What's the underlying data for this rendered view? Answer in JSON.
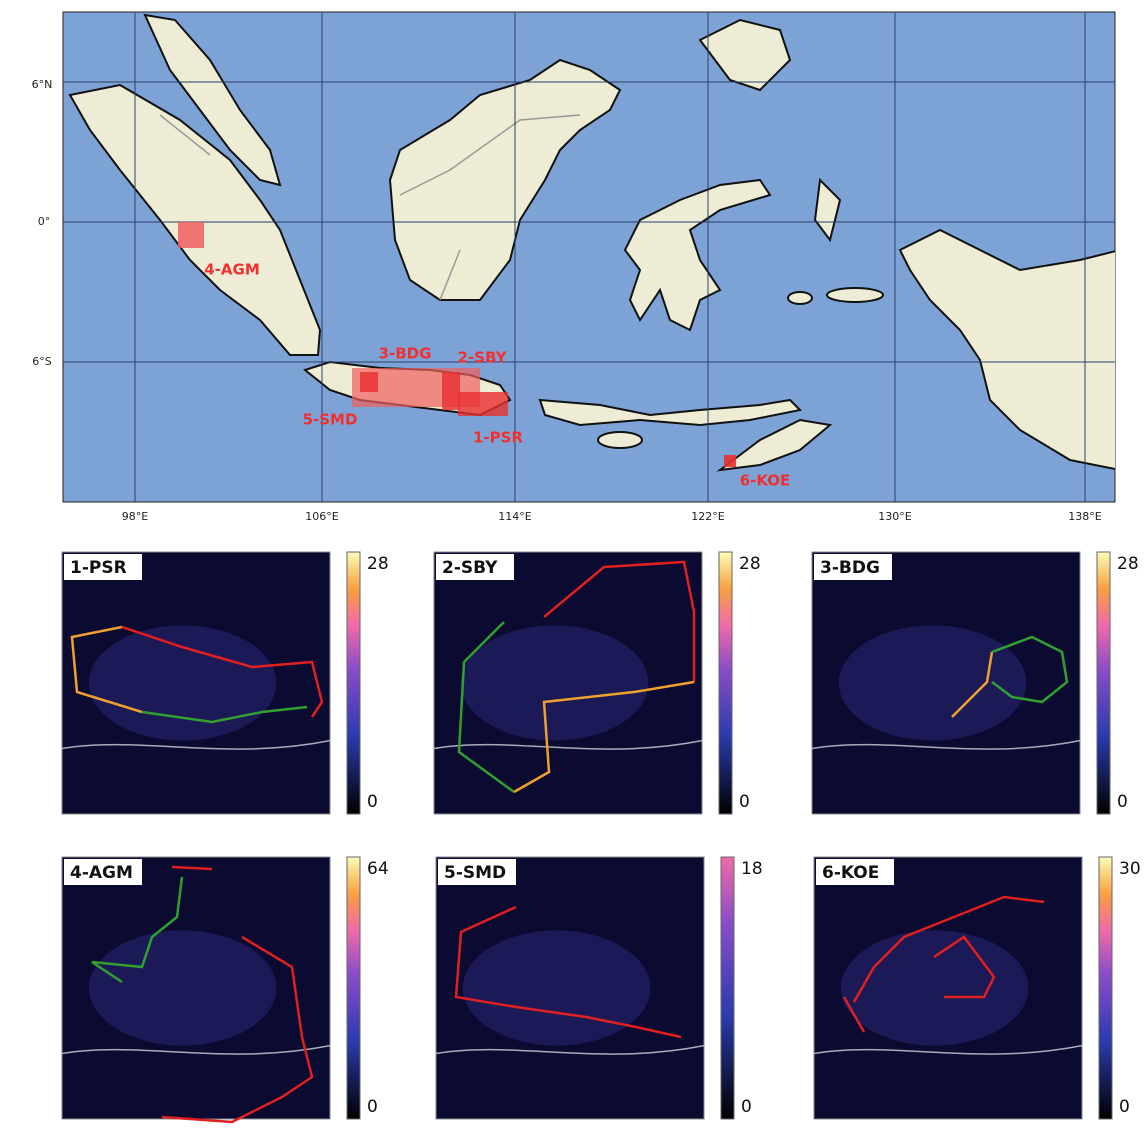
{
  "map": {
    "lat_labels": [
      "6°N",
      "0°",
      "6°S"
    ],
    "lon_labels": [
      "98°E",
      "106°E",
      "114°E",
      "122°E",
      "130°E",
      "138°E"
    ],
    "regions": [
      "1-PSR",
      "2-SBY",
      "3-BDG",
      "4-AGM",
      "5-SMD",
      "6-KOE"
    ]
  },
  "panels": [
    {
      "title": "1-PSR",
      "colorbar_max": "28",
      "colorbar_min": "0"
    },
    {
      "title": "2-SBY",
      "colorbar_max": "28",
      "colorbar_min": "0"
    },
    {
      "title": "3-BDG",
      "colorbar_max": "28",
      "colorbar_min": "0"
    },
    {
      "title": "4-AGM",
      "colorbar_max": "64",
      "colorbar_min": "0"
    },
    {
      "title": "5-SMD",
      "colorbar_max": "18",
      "colorbar_min": "0"
    },
    {
      "title": "6-KOE",
      "colorbar_max": "30",
      "colorbar_min": "0"
    }
  ]
}
